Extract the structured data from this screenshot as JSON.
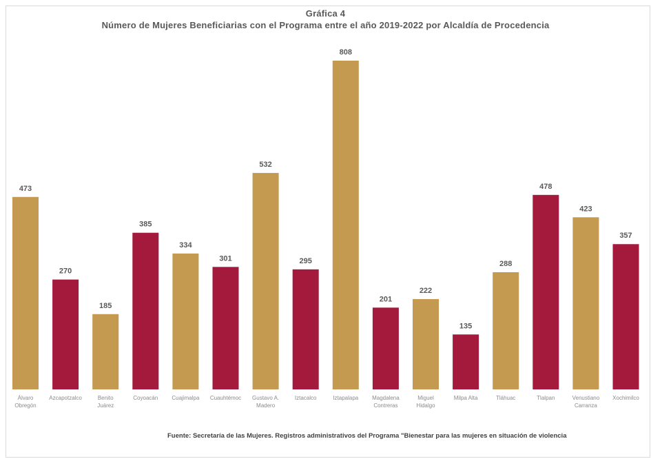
{
  "chart_data": {
    "type": "bar",
    "title": "Gráfica 4",
    "subtitle": "Número de Mujeres Beneficiarias con el Programa entre el año 2019-2022 por Alcaldía de Procedencia",
    "categories": [
      "Álvaro Obregón",
      "Azcapotzalco",
      "Benito Juárez",
      "Coyoacán",
      "Cuajimalpa",
      "Cuauhtémoc",
      "Gustavo A. Madero",
      "Iztacalco",
      "Iztapalapa",
      "Magdalena Contreras",
      "Miguel Hidalgo",
      "Milpa Alta",
      "Tláhuac",
      "Tlalpan",
      "Venustiano Carranza",
      "Xochimilco"
    ],
    "category_lines": [
      [
        "Álvaro",
        "Obregón"
      ],
      [
        "Azcapotzalco"
      ],
      [
        "Benito",
        "Juárez"
      ],
      [
        "Coyoacán"
      ],
      [
        "Cuajimalpa"
      ],
      [
        "Cuauhtémoc"
      ],
      [
        "Gustavo A.",
        "Madero"
      ],
      [
        "Iztacalco"
      ],
      [
        "Iztapalapa"
      ],
      [
        "Magdalena",
        "Contreras"
      ],
      [
        "Miguel",
        "Hidalgo"
      ],
      [
        "Milpa Alta"
      ],
      [
        "Tláhuac"
      ],
      [
        "Tlalpan"
      ],
      [
        "Venustiano",
        "Carranza"
      ],
      [
        "Xochimilco"
      ]
    ],
    "values": [
      473,
      270,
      185,
      385,
      334,
      301,
      532,
      295,
      808,
      201,
      222,
      135,
      288,
      478,
      423,
      357
    ],
    "bar_colors": [
      "#c39a50",
      "#a31a3c",
      "#c39a50",
      "#a31a3c",
      "#c39a50",
      "#a31a3c",
      "#c39a50",
      "#a31a3c",
      "#c39a50",
      "#a31a3c",
      "#c39a50",
      "#a31a3c",
      "#c39a50",
      "#a31a3c",
      "#c39a50",
      "#a31a3c"
    ],
    "xlabel": "",
    "ylabel": "",
    "ylim": [
      0,
      808
    ],
    "grid": false,
    "legend": "none",
    "data_labels": true
  },
  "source_note": "Fuente: Secretaría de las Mujeres. Registros administrativos del Programa \"Bienestar para las mujeres en situación de violencia"
}
